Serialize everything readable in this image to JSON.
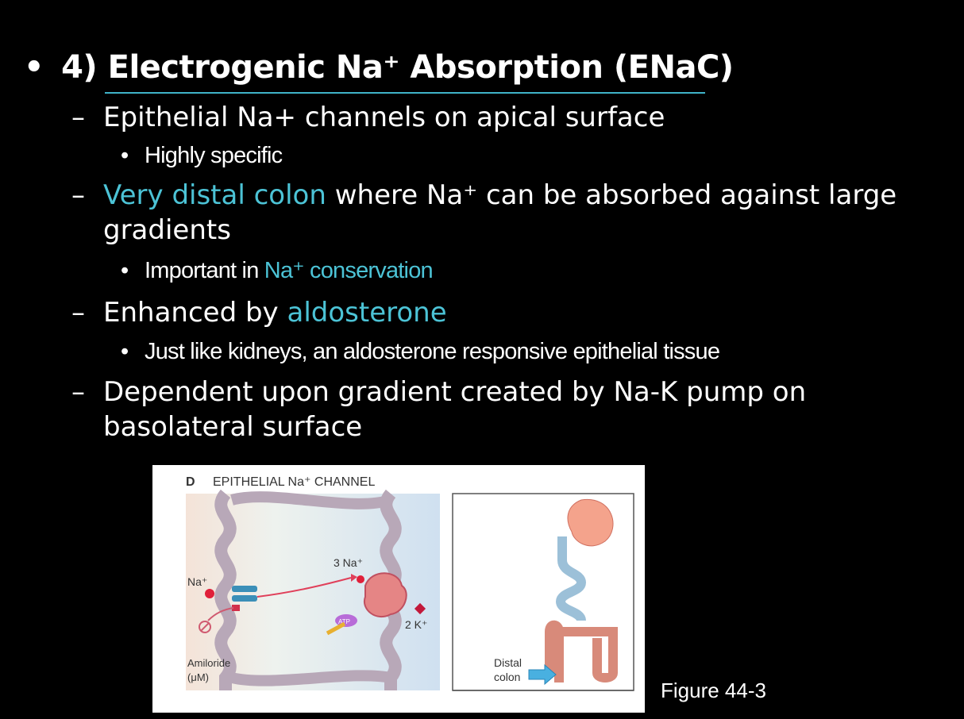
{
  "slide": {
    "bullet": "•",
    "title": "4) Electrogenic Na⁺ Absorption (ENaC)",
    "points": [
      {
        "dash": "–",
        "text": "Epithelial Na+ channels on apical surface"
      },
      {
        "dot": "•",
        "text": "Highly specific"
      },
      {
        "dash": "–",
        "hl": "Very distal colon",
        "rest": " where Na⁺ can be absorbed against large",
        "cont": "gradients"
      },
      {
        "dot": "•",
        "pre": "Important in ",
        "hl": "Na⁺ conservation"
      },
      {
        "dash": "–",
        "pre": "Enhanced by ",
        "hl": "aldosterone"
      },
      {
        "dot": "•",
        "text": "Just like kidneys, an aldosterone responsive epithelial tissue"
      },
      {
        "dash": "–",
        "text": "Dependent upon gradient created by Na-K pump on",
        "cont": "basolateral surface"
      }
    ],
    "highlight_color": "#4cc3d6"
  },
  "figure": {
    "panel_letter": "D",
    "panel_title": "EPITHELIAL Na⁺ CHANNEL",
    "labels": {
      "na": "Na⁺",
      "three_na": "3 Na⁺",
      "two_k": "2 K⁺",
      "atp": "ATP",
      "amiloride": "Amiloride",
      "um": "(μM)",
      "distal": "Distal",
      "colon": "colon"
    },
    "caption": "Figure 44-3"
  }
}
